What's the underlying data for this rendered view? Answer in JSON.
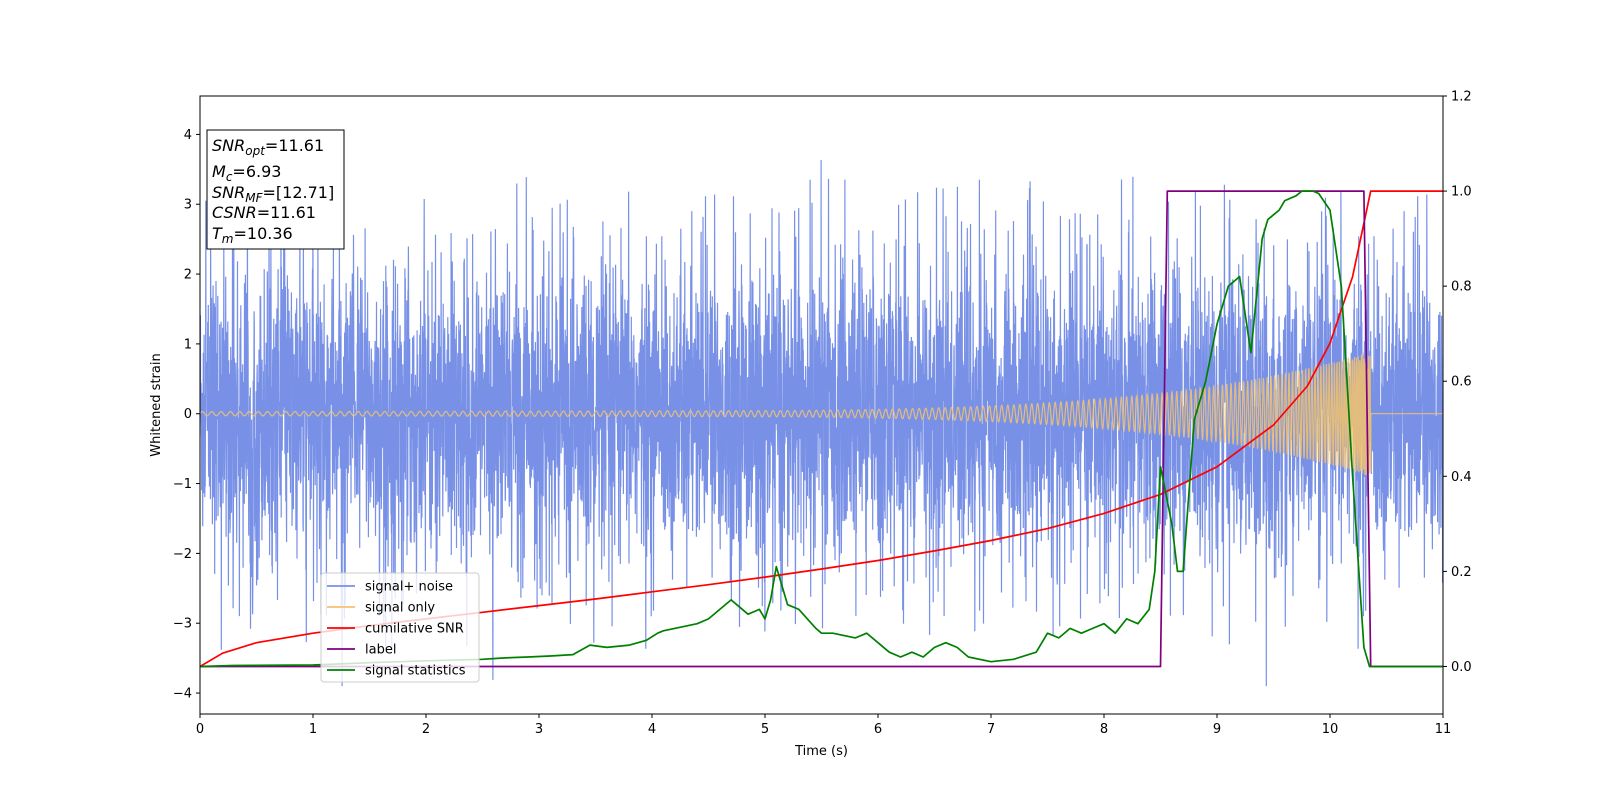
{
  "chart_data": {
    "type": "line",
    "xlabel": "Time (s)",
    "ylabel_left": "Whitened strain",
    "ylabel_right": "",
    "xlim": [
      0,
      11
    ],
    "ylim_left": [
      -4.3,
      4.55
    ],
    "ylim_right": [
      -0.1,
      1.2
    ],
    "x_ticks": [
      0,
      1,
      2,
      3,
      4,
      5,
      6,
      7,
      8,
      9,
      10,
      11
    ],
    "y_ticks_left": [
      -4,
      -3,
      -2,
      -1,
      0,
      1,
      2,
      3,
      4
    ],
    "y_ticks_right": [
      0.0,
      0.2,
      0.4,
      0.6,
      0.8,
      1.0,
      1.2
    ],
    "y_ticks_left_labels": [
      "−4",
      "−3",
      "−2",
      "−1",
      "0",
      "1",
      "2",
      "3",
      "4"
    ],
    "y_ticks_right_labels": [
      "0.0",
      "0.2",
      "0.4",
      "0.6",
      "0.8",
      "1.0",
      "1.2"
    ],
    "grid": false,
    "legend_position": "lower-left",
    "annotation": {
      "lines": [
        {
          "main": "SNR",
          "sub": "opt",
          "rest": "=11.61"
        },
        {
          "main": "M",
          "sub": "c",
          "rest": "=6.93"
        },
        {
          "main": "SNR",
          "sub": "MF",
          "rest": "=[12.71]"
        },
        {
          "main": "CSNR",
          "sub": "",
          "rest": "=11.61"
        },
        {
          "main": "T",
          "sub": "m",
          "rest": "=10.36"
        }
      ]
    },
    "series": [
      {
        "name": "signal+ noise",
        "color": "#7891e7",
        "axis": "left",
        "kind": "noise",
        "envelope_typical": 1.3,
        "envelope_peak": 3.4
      },
      {
        "name": "signal only",
        "color": "#f5c36c",
        "axis": "left",
        "kind": "chirp",
        "amplitude_start": 0.03,
        "amplitude_end": 0.9,
        "merger_time": 10.36
      },
      {
        "name": "cumilative SNR",
        "color": "#ff0000",
        "axis": "right",
        "x": [
          0,
          0.2,
          0.5,
          1,
          1.5,
          2,
          2.5,
          3,
          3.5,
          4,
          4.5,
          5,
          5.5,
          6,
          6.5,
          7,
          7.5,
          8,
          8.5,
          9,
          9.5,
          9.8,
          10.0,
          10.2,
          10.36,
          10.5,
          11
        ],
        "values": [
          0.0,
          0.028,
          0.05,
          0.07,
          0.086,
          0.1,
          0.114,
          0.128,
          0.142,
          0.157,
          0.172,
          0.188,
          0.205,
          0.223,
          0.243,
          0.265,
          0.29,
          0.322,
          0.362,
          0.42,
          0.508,
          0.59,
          0.68,
          0.82,
          1.0,
          1.0,
          1.0
        ]
      },
      {
        "name": "label",
        "color": "#800080",
        "axis": "right",
        "x": [
          0,
          8.5,
          8.56,
          10.3,
          10.36,
          11
        ],
        "values": [
          0,
          0,
          1,
          1,
          0,
          0
        ]
      },
      {
        "name": "signal statistics",
        "color": "#008000",
        "axis": "right",
        "x": [
          0,
          0.3,
          1.0,
          1.5,
          2.0,
          2.5,
          2.7,
          2.9,
          3.1,
          3.3,
          3.45,
          3.6,
          3.8,
          3.95,
          4.05,
          4.1,
          4.2,
          4.3,
          4.4,
          4.5,
          4.6,
          4.7,
          4.75,
          4.85,
          4.95,
          5.0,
          5.05,
          5.1,
          5.2,
          5.3,
          5.45,
          5.5,
          5.6,
          5.8,
          5.9,
          6.0,
          6.1,
          6.2,
          6.3,
          6.4,
          6.5,
          6.6,
          6.7,
          6.8,
          7.0,
          7.2,
          7.4,
          7.5,
          7.6,
          7.7,
          7.8,
          7.9,
          8.0,
          8.1,
          8.2,
          8.3,
          8.4,
          8.45,
          8.5,
          8.55,
          8.6,
          8.65,
          8.7,
          8.8,
          8.9,
          9.0,
          9.1,
          9.2,
          9.3,
          9.4,
          9.45,
          9.5,
          9.55,
          9.6,
          9.7,
          9.75,
          9.8,
          9.85,
          9.9,
          10.0,
          10.1,
          10.15,
          10.2,
          10.3,
          10.35,
          10.5,
          11
        ],
        "values": [
          0.0,
          0.002,
          0.003,
          0.008,
          0.012,
          0.015,
          0.018,
          0.02,
          0.022,
          0.025,
          0.045,
          0.04,
          0.045,
          0.055,
          0.07,
          0.075,
          0.08,
          0.085,
          0.09,
          0.1,
          0.12,
          0.14,
          0.13,
          0.11,
          0.12,
          0.1,
          0.14,
          0.21,
          0.13,
          0.12,
          0.08,
          0.07,
          0.07,
          0.06,
          0.07,
          0.05,
          0.03,
          0.02,
          0.03,
          0.02,
          0.04,
          0.05,
          0.04,
          0.02,
          0.01,
          0.015,
          0.03,
          0.07,
          0.06,
          0.08,
          0.07,
          0.08,
          0.09,
          0.07,
          0.1,
          0.09,
          0.12,
          0.2,
          0.42,
          0.36,
          0.3,
          0.2,
          0.2,
          0.52,
          0.6,
          0.72,
          0.8,
          0.82,
          0.66,
          0.9,
          0.94,
          0.95,
          0.96,
          0.98,
          0.99,
          1.0,
          1.0,
          1.0,
          0.995,
          0.96,
          0.8,
          0.6,
          0.4,
          0.04,
          0.0,
          0.0,
          0.0
        ]
      }
    ]
  }
}
